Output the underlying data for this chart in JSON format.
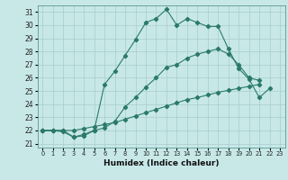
{
  "xlabel": "Humidex (Indice chaleur)",
  "bg_color": "#c8e8e8",
  "grid_color": "#a8cccc",
  "line_color": "#2a7a6a",
  "xlim": [
    -0.5,
    23.5
  ],
  "ylim": [
    20.7,
    31.5
  ],
  "xticks": [
    0,
    1,
    2,
    3,
    4,
    5,
    6,
    7,
    8,
    9,
    10,
    11,
    12,
    13,
    14,
    15,
    16,
    17,
    18,
    19,
    20,
    21,
    22,
    23
  ],
  "yticks": [
    21,
    22,
    23,
    24,
    25,
    26,
    27,
    28,
    29,
    30,
    31
  ],
  "line1_x": [
    0,
    1,
    2,
    3,
    4,
    5,
    6,
    7,
    8,
    9,
    10,
    11,
    12,
    13,
    14,
    15,
    16,
    17,
    18,
    19,
    20,
    21,
    22
  ],
  "line1_y": [
    22.0,
    22.0,
    22.0,
    21.5,
    21.6,
    22.0,
    25.5,
    26.5,
    27.7,
    28.9,
    30.2,
    30.5,
    31.2,
    30.0,
    30.5,
    30.2,
    29.9,
    29.9,
    28.2,
    26.7,
    25.9,
    24.5,
    25.2
  ],
  "line2_x": [
    0,
    1,
    2,
    3,
    4,
    5,
    6,
    7,
    8,
    9,
    10,
    11,
    12,
    13,
    14,
    15,
    16,
    17,
    18,
    19,
    20,
    21
  ],
  "line2_y": [
    22.0,
    22.0,
    21.9,
    21.5,
    21.7,
    22.0,
    22.2,
    22.7,
    23.8,
    24.5,
    25.3,
    26.0,
    26.8,
    27.0,
    27.5,
    27.8,
    28.0,
    28.2,
    27.8,
    27.0,
    26.0,
    25.8
  ],
  "line3_x": [
    0,
    1,
    2,
    3,
    4,
    5,
    6,
    7,
    8,
    9,
    10,
    11,
    12,
    13,
    14,
    15,
    16,
    17,
    18,
    19,
    20,
    21
  ],
  "line3_y": [
    22.0,
    22.0,
    22.0,
    22.0,
    22.15,
    22.3,
    22.45,
    22.6,
    22.85,
    23.1,
    23.35,
    23.6,
    23.85,
    24.1,
    24.35,
    24.5,
    24.7,
    24.9,
    25.05,
    25.2,
    25.35,
    25.5
  ]
}
